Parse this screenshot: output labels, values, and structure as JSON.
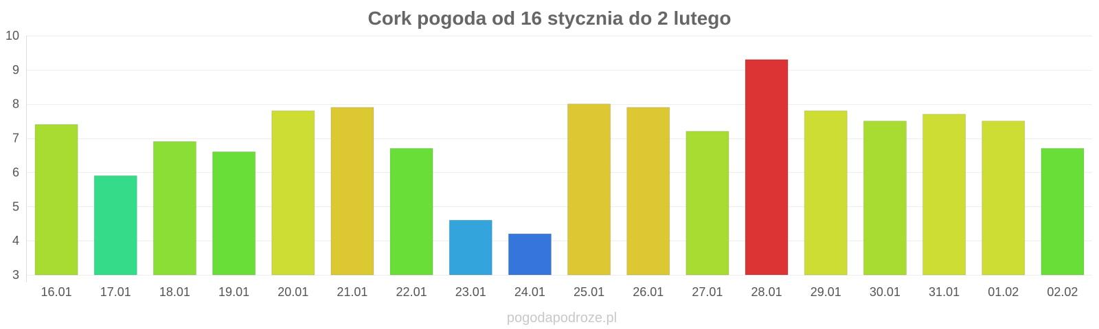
{
  "chart_data": {
    "type": "bar",
    "title": "Cork pogoda od 16 stycznia do 2 lutego",
    "xlabel": "",
    "ylabel": "",
    "ylim": [
      3,
      10
    ],
    "yticks": [
      3,
      4,
      5,
      6,
      7,
      8,
      9,
      10
    ],
    "grid": true,
    "categories": [
      "16.01",
      "17.01",
      "18.01",
      "19.01",
      "20.01",
      "21.01",
      "22.01",
      "23.01",
      "24.01",
      "25.01",
      "26.01",
      "27.01",
      "28.01",
      "29.01",
      "30.01",
      "31.01",
      "01.02",
      "02.02"
    ],
    "values": [
      7.4,
      5.9,
      6.9,
      6.6,
      7.8,
      7.9,
      6.7,
      4.6,
      4.2,
      8.0,
      7.9,
      7.2,
      9.3,
      7.8,
      7.5,
      7.7,
      7.5,
      6.7
    ],
    "colors": [
      "#a9dc30",
      "#34dc8a",
      "#8bde35",
      "#69dd38",
      "#cddd33",
      "#dcc833",
      "#69dd38",
      "#34a5dc",
      "#3476dc",
      "#dcc833",
      "#dcc833",
      "#a9dc30",
      "#dc3434",
      "#cddd33",
      "#a9dc30",
      "#cddd33",
      "#cddd33",
      "#69dd38"
    ]
  },
  "watermark": "pogodapodroze.pl"
}
